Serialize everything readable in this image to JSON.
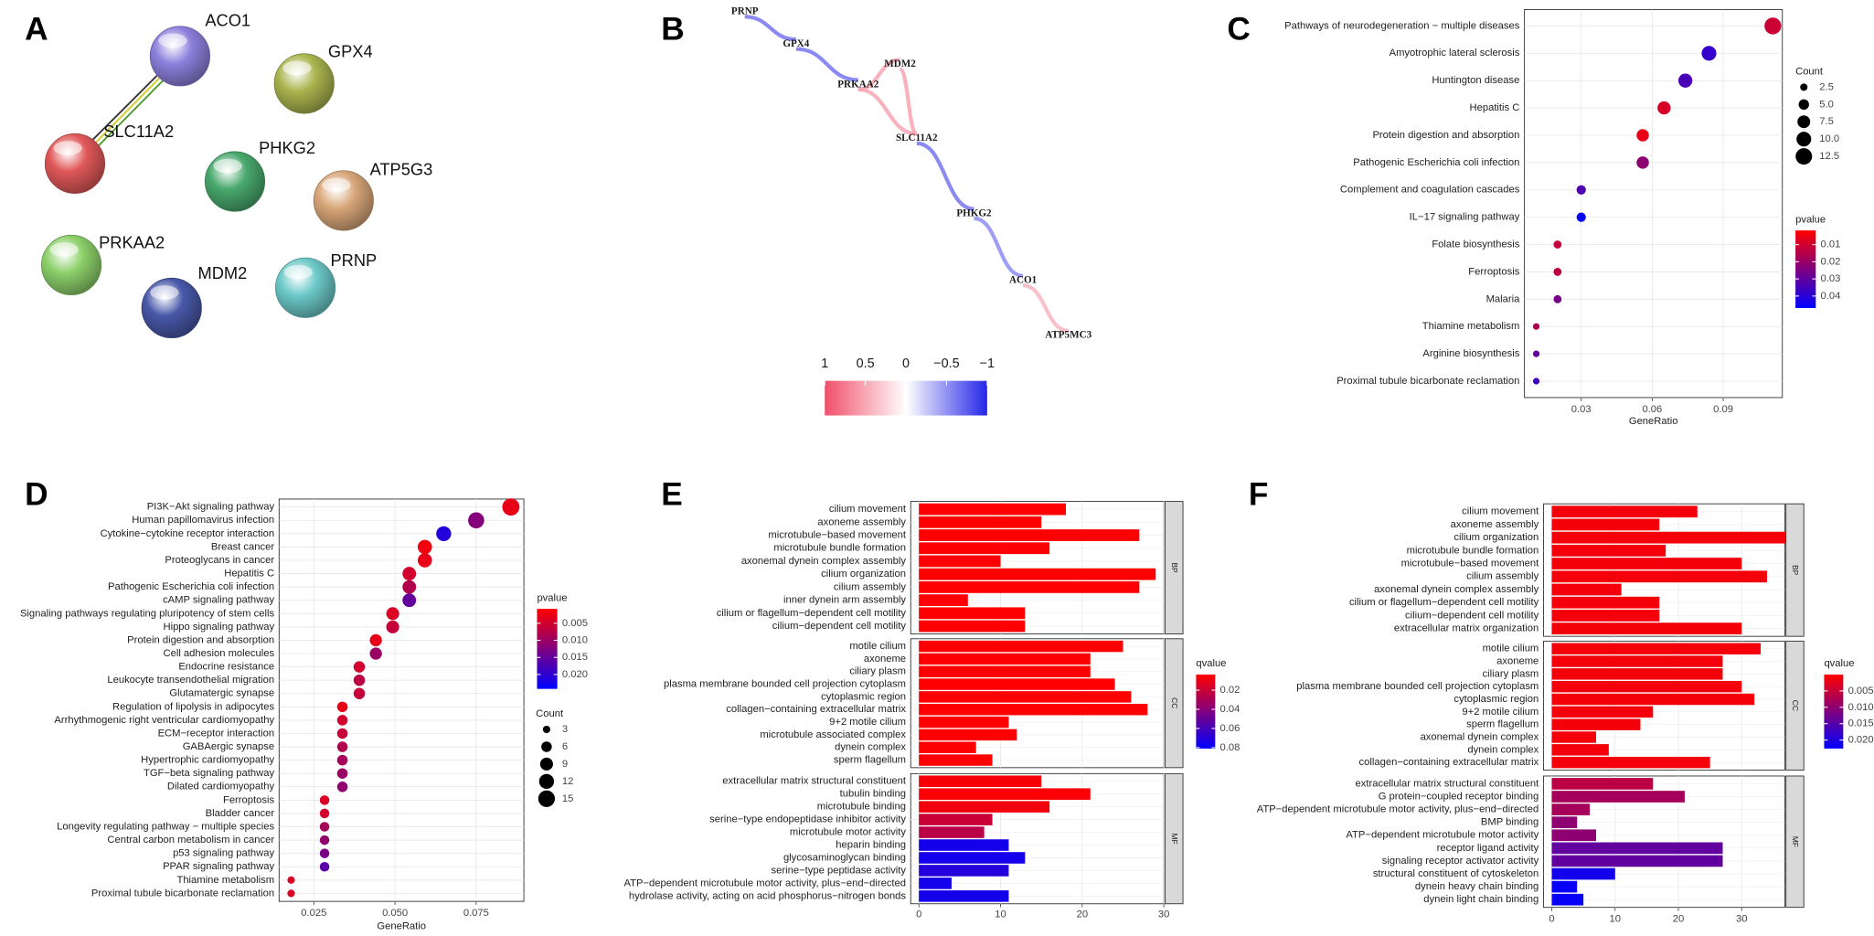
{
  "chart_data": [
    {
      "type": "protein_network",
      "label": "A",
      "nodes": [
        {
          "name": "ACO1",
          "color": "#8c7fdc"
        },
        {
          "name": "GPX4",
          "color": "#a9b44e"
        },
        {
          "name": "SLC11A2",
          "color": "#e05858"
        },
        {
          "name": "PHKG2",
          "color": "#48a86c"
        },
        {
          "name": "ATP5G3",
          "color": "#d8a679"
        },
        {
          "name": "PRKAA2",
          "color": "#8cd06a"
        },
        {
          "name": "MDM2",
          "color": "#4858a8"
        },
        {
          "name": "PRNP",
          "color": "#6cc8c8"
        }
      ]
    },
    {
      "type": "correlation_network",
      "label": "B",
      "nodes": [
        "PRNP",
        "GPX4",
        "MDM2",
        "PRKAA2",
        "SLC11A2",
        "PHKG2",
        "ACO1",
        "ATP5MC3"
      ],
      "edge_values": [
        -0.6,
        -0.6,
        0.5,
        0.5,
        0.5,
        -0.6,
        -0.5,
        0.4
      ],
      "colors": [
        "#f0506a",
        "#ffffff",
        "#2626e8"
      ],
      "colorbar_lim": [
        1,
        -1
      ],
      "colorbar_ticks": [
        1,
        0.5,
        0,
        {
          "value": -0.5,
          "label": "−0.5"
        },
        {
          "value": -1,
          "label": "−1"
        }
      ]
    },
    {
      "type": "dot",
      "label": "C",
      "categories": [
        "Pathways of neurodegeneration − multiple diseases",
        "Amyotrophic lateral sclerosis",
        "Huntington disease",
        "Hepatitis C",
        "Protein digestion and absorption",
        "Pathogenic Escherichia coli infection",
        "Complement and coagulation cascades",
        "IL−17 signaling pathway",
        "Folate biosynthesis",
        "Ferroptosis",
        "Malaria",
        "Thiamine metabolism",
        "Arginine biosynthesis",
        "Proximal tubule bicarbonate reclamation"
      ],
      "x": [
        0.111,
        0.084,
        0.074,
        0.065,
        0.056,
        0.056,
        0.03,
        0.03,
        0.02,
        0.02,
        0.02,
        0.011,
        0.011,
        0.011
      ],
      "count": [
        13,
        10,
        9,
        8,
        7,
        7,
        4,
        4,
        3,
        3,
        3,
        2,
        2,
        2
      ],
      "pvalue": [
        0.011,
        0.038,
        0.034,
        0.009,
        0.006,
        0.022,
        0.033,
        0.046,
        0.012,
        0.014,
        0.026,
        0.016,
        0.03,
        0.036
      ],
      "xlim": [
        0.006,
        0.115
      ],
      "xticks": [
        0.03,
        0.06,
        0.09
      ],
      "xlabel": "GeneRatio",
      "colors": [
        "#ff0000",
        "#0000ff"
      ],
      "size_legend": {
        "title": "Count",
        "ticks": [
          2.5,
          {
            "value": 5,
            "label": "5.0"
          },
          7.5,
          {
            "value": 10,
            "label": "10.0"
          },
          12.5
        ]
      },
      "color_legend": {
        "title": "pvalue",
        "lim": [
          0.0017,
          0.047
        ],
        "ticks": [
          0.01,
          0.02,
          0.03,
          0.04
        ]
      }
    },
    {
      "type": "dot",
      "label": "D",
      "categories": [
        "PI3K−Akt signaling pathway",
        "Human papillomavirus infection",
        "Cytokine−cytokine receptor interaction",
        "Breast cancer",
        "Proteoglycans in cancer",
        "Hepatitis C",
        "Pathogenic Escherichia coli infection",
        "cAMP signaling pathway",
        "Signaling pathways regulating pluripotency of stem cells",
        "Hippo signaling pathway",
        "Protein digestion and absorption",
        "Cell adhesion molecules",
        "Endocrine resistance",
        "Leukocyte transendothelial migration",
        "Glutamatergic synapse",
        "Regulation of lipolysis in adipocytes",
        "Arrhythmogenic right ventricular cardiomyopathy",
        "ECM−receptor interaction",
        "GABAergic synapse",
        "Hypertrophic cardiomyopathy",
        "TGF−beta signaling pathway",
        "Dilated cardiomyopathy",
        "Ferroptosis",
        "Bladder cancer",
        "Longevity regulating pathway − multiple species",
        "Central carbon metabolism in cancer",
        "p53 signaling pathway",
        "PPAR signaling pathway",
        "Thiamine metabolism",
        "Proximal tubule bicarbonate reclamation"
      ],
      "x": [
        0.0857,
        0.075,
        0.065,
        0.0592,
        0.0592,
        0.0544,
        0.0544,
        0.0544,
        0.0493,
        0.0493,
        0.0441,
        0.0441,
        0.039,
        0.039,
        0.039,
        0.0338,
        0.0338,
        0.0338,
        0.0338,
        0.0338,
        0.0338,
        0.0338,
        0.0283,
        0.0283,
        0.0283,
        0.0283,
        0.0283,
        0.0283,
        0.018,
        0.018
      ],
      "count": [
        16,
        14,
        12,
        11,
        11,
        10,
        10,
        10,
        9,
        9,
        8,
        8,
        7,
        7,
        7,
        6,
        6,
        6,
        6,
        6,
        6,
        6,
        5,
        5,
        5,
        5,
        5,
        5,
        3,
        3
      ],
      "pvalue": [
        0.003,
        0.012,
        0.021,
        0.002,
        0.003,
        0.005,
        0.008,
        0.015,
        0.004,
        0.006,
        0.003,
        0.01,
        0.005,
        0.007,
        0.006,
        0.003,
        0.005,
        0.006,
        0.008,
        0.009,
        0.01,
        0.011,
        0.004,
        0.005,
        0.009,
        0.011,
        0.013,
        0.016,
        0.004,
        0.004
      ],
      "xlim": [
        0.0143,
        0.0897
      ],
      "xticks": [
        0.025,
        {
          "value": 0.05,
          "label": "0.050"
        },
        0.075
      ],
      "xlabel": "GeneRatio",
      "colors": [
        "#ff0000",
        "#0000ff"
      ],
      "color_legend": {
        "title": "pvalue",
        "lim": [
          0.0008,
          0.0242
        ],
        "ticks": [
          0.005,
          {
            "value": 0.01,
            "label": "0.010"
          },
          0.015,
          {
            "value": 0.02,
            "label": "0.020"
          }
        ]
      },
      "size_legend": {
        "title": "Count",
        "ticks": [
          3,
          6,
          9,
          12,
          15
        ]
      }
    },
    {
      "type": "bar",
      "label": "E",
      "facets": [
        {
          "name": "BP",
          "categories": [
            "cilium movement",
            "axoneme assembly",
            "microtubule−based movement",
            "microtubule bundle formation",
            "axonemal dynein complex assembly",
            "cilium organization",
            "cilium assembly",
            "inner dynein arm assembly",
            "cilium or flagellum−dependent cell motility",
            "cilium−dependent cell motility"
          ],
          "values": [
            18,
            15,
            27,
            16,
            10,
            29,
            27,
            6,
            13,
            13
          ],
          "qvalue": [
            0.004,
            0.004,
            0.004,
            0.004,
            0.004,
            0.004,
            0.004,
            0.004,
            0.004,
            0.004
          ]
        },
        {
          "name": "CC",
          "categories": [
            "motile cilium",
            "axoneme",
            "ciliary plasm",
            "plasma membrane bounded cell projection cytoplasm",
            "cytoplasmic region",
            "collagen−containing extracellular matrix",
            "9+2 motile cilium",
            "microtubule associated complex",
            "dynein complex",
            "sperm flagellum"
          ],
          "values": [
            25,
            21,
            21,
            24,
            26,
            28,
            11,
            12,
            7,
            9
          ],
          "qvalue": [
            0.004,
            0.004,
            0.004,
            0.004,
            0.004,
            0.004,
            0.004,
            0.004,
            0.004,
            0.004
          ]
        },
        {
          "name": "MF",
          "categories": [
            "extracellular matrix structural constituent",
            "tubulin binding",
            "microtubule binding",
            "serine−type endopeptidase inhibitor activity",
            "microtubule motor activity",
            "heparin binding",
            "glycosaminoglycan binding",
            "serine−type peptidase activity",
            "ATP−dependent microtubule motor activity, plus−end−directed",
            "hydrolase activity, acting on acid phosphorus−nitrogen bonds"
          ],
          "values": [
            15,
            21,
            16,
            9,
            8,
            11,
            13,
            11,
            4,
            11
          ],
          "qvalue": [
            0.006,
            0.005,
            0.008,
            0.02,
            0.025,
            0.075,
            0.075,
            0.07,
            0.075,
            0.075
          ]
        }
      ],
      "xlim": [
        -1,
        30
      ],
      "xticks": [
        0,
        10,
        20,
        30
      ],
      "colors": [
        "#ff0000",
        "#0000ff"
      ],
      "color_legend": {
        "title": "qvalue",
        "lim": [
          0.0037,
          0.081
        ],
        "ticks": [
          0.02,
          0.04,
          0.06,
          0.08
        ]
      }
    },
    {
      "type": "bar",
      "label": "F",
      "facets": [
        {
          "name": "BP",
          "categories": [
            "cilium movement",
            "axoneme assembly",
            "cilium organization",
            "microtubule bundle formation",
            "microtubule−based movement",
            "cilium assembly",
            "axonemal dynein complex assembly",
            "cilium or flagellum−dependent cell motility",
            "cilium−dependent cell motility",
            "extracellular matrix organization"
          ],
          "values": [
            23,
            17,
            37,
            18,
            30,
            34,
            11,
            17,
            17,
            30
          ],
          "qvalue": [
            0.001,
            0.001,
            0.001,
            0.001,
            0.001,
            0.001,
            0.001,
            0.001,
            0.001,
            0.001
          ]
        },
        {
          "name": "CC",
          "categories": [
            "motile cilium",
            "axoneme",
            "ciliary plasm",
            "plasma membrane bounded cell projection cytoplasm",
            "cytoplasmic region",
            "9+2 motile cilium",
            "sperm flagellum",
            "axonemal dynein complex",
            "dynein complex",
            "collagen−containing extracellular matrix"
          ],
          "values": [
            33,
            27,
            27,
            30,
            32,
            16,
            14,
            7,
            9,
            25
          ],
          "qvalue": [
            0.001,
            0.001,
            0.001,
            0.001,
            0.001,
            0.001,
            0.001,
            0.001,
            0.001,
            0.001
          ]
        },
        {
          "name": "MF",
          "categories": [
            "extracellular matrix structural constituent",
            "G protein−coupled receptor binding",
            "ATP−dependent microtubule motor activity, plus−end−directed",
            "BMP binding",
            "ATP−dependent microtubule motor activity",
            "receptor ligand activity",
            "signaling receptor activator activity",
            "structural constituent of cytoskeleton",
            "dynein heavy chain binding",
            "dynein light chain binding"
          ],
          "values": [
            16,
            21,
            6,
            4,
            7,
            27,
            27,
            10,
            4,
            5
          ],
          "qvalue": [
            0.006,
            0.008,
            0.008,
            0.01,
            0.01,
            0.014,
            0.014,
            0.021,
            0.022,
            0.022
          ]
        }
      ],
      "xlim": [
        -1.3,
        36.8
      ],
      "xticks": [
        0,
        10,
        20,
        30
      ],
      "colors": [
        "#ff0000",
        "#0000ff"
      ],
      "color_legend": {
        "title": "qvalue",
        "lim": [
          0,
          0.0226
        ],
        "ticks": [
          0.005,
          {
            "value": 0.01,
            "label": "0.010"
          },
          0.015,
          {
            "value": 0.02,
            "label": "0.020"
          }
        ]
      }
    }
  ]
}
